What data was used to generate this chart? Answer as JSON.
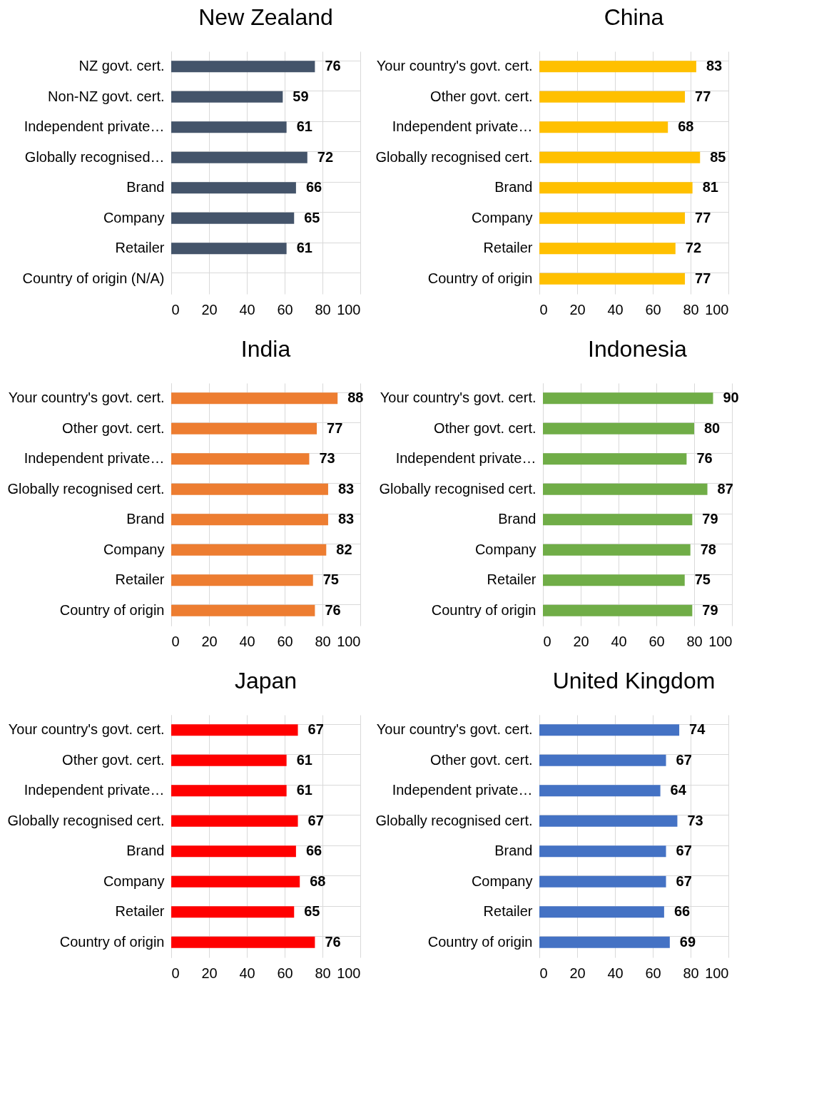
{
  "chart_data": [
    {
      "type": "bar",
      "title": "New Zealand",
      "orientation": "horizontal",
      "categories": [
        "NZ govt. cert.",
        "Non-NZ govt. cert.",
        "Independent private…",
        "Globally recognised…",
        "Brand",
        "Company",
        "Retailer",
        "Country of origin (N/A)"
      ],
      "values": [
        76,
        59,
        61,
        72,
        66,
        65,
        61,
        null
      ],
      "color": "#44546a",
      "xlim": [
        0,
        100
      ],
      "xticks": [
        0,
        20,
        40,
        60,
        80,
        100
      ],
      "grid": true,
      "data_labels": true
    },
    {
      "type": "bar",
      "title": "China",
      "orientation": "horizontal",
      "categories": [
        "Your country's govt. cert.",
        "Other govt. cert.",
        "Independent private…",
        "Globally recognised cert.",
        "Brand",
        "Company",
        "Retailer",
        "Country of origin"
      ],
      "values": [
        83,
        77,
        68,
        85,
        81,
        77,
        72,
        77
      ],
      "color": "#ffc000",
      "xlim": [
        0,
        100
      ],
      "xticks": [
        0,
        20,
        40,
        60,
        80,
        100
      ],
      "grid": true,
      "data_labels": true
    },
    {
      "type": "bar",
      "title": "India",
      "orientation": "horizontal",
      "categories": [
        "Your country's govt. cert.",
        "Other govt. cert.",
        "Independent private…",
        "Globally recognised cert.",
        "Brand",
        "Company",
        "Retailer",
        "Country of origin"
      ],
      "values": [
        88,
        77,
        73,
        83,
        83,
        82,
        75,
        76
      ],
      "color": "#ed7d31",
      "xlim": [
        0,
        100
      ],
      "xticks": [
        0,
        20,
        40,
        60,
        80,
        100
      ],
      "grid": true,
      "data_labels": true
    },
    {
      "type": "bar",
      "title": "Indonesia",
      "orientation": "horizontal",
      "categories": [
        "Your country's govt. cert.",
        "Other govt. cert.",
        "Independent private…",
        "Globally recognised cert.",
        "Brand",
        "Company",
        "Retailer",
        "Country of origin"
      ],
      "values": [
        90,
        80,
        76,
        87,
        79,
        78,
        75,
        79
      ],
      "color": "#70ad47",
      "xlim": [
        0,
        100
      ],
      "xticks": [
        0,
        20,
        40,
        60,
        80,
        100
      ],
      "grid": true,
      "data_labels": true
    },
    {
      "type": "bar",
      "title": "Japan",
      "orientation": "horizontal",
      "categories": [
        "Your country's govt. cert.",
        "Other govt. cert.",
        "Independent private…",
        "Globally recognised cert.",
        "Brand",
        "Company",
        "Retailer",
        "Country of origin"
      ],
      "values": [
        67,
        61,
        61,
        67,
        66,
        68,
        65,
        76
      ],
      "color": "#ff0000",
      "xlim": [
        0,
        100
      ],
      "xticks": [
        0,
        20,
        40,
        60,
        80,
        100
      ],
      "grid": true,
      "data_labels": true
    },
    {
      "type": "bar",
      "title": "United Kingdom",
      "orientation": "horizontal",
      "categories": [
        "Your country's govt. cert.",
        "Other govt. cert.",
        "Independent private…",
        "Globally recognised cert.",
        "Brand",
        "Company",
        "Retailer",
        "Country of origin"
      ],
      "values": [
        74,
        67,
        64,
        73,
        67,
        67,
        66,
        69
      ],
      "color": "#4472c4",
      "xlim": [
        0,
        100
      ],
      "xticks": [
        0,
        20,
        40,
        60,
        80,
        100
      ],
      "grid": true,
      "data_labels": true
    }
  ]
}
